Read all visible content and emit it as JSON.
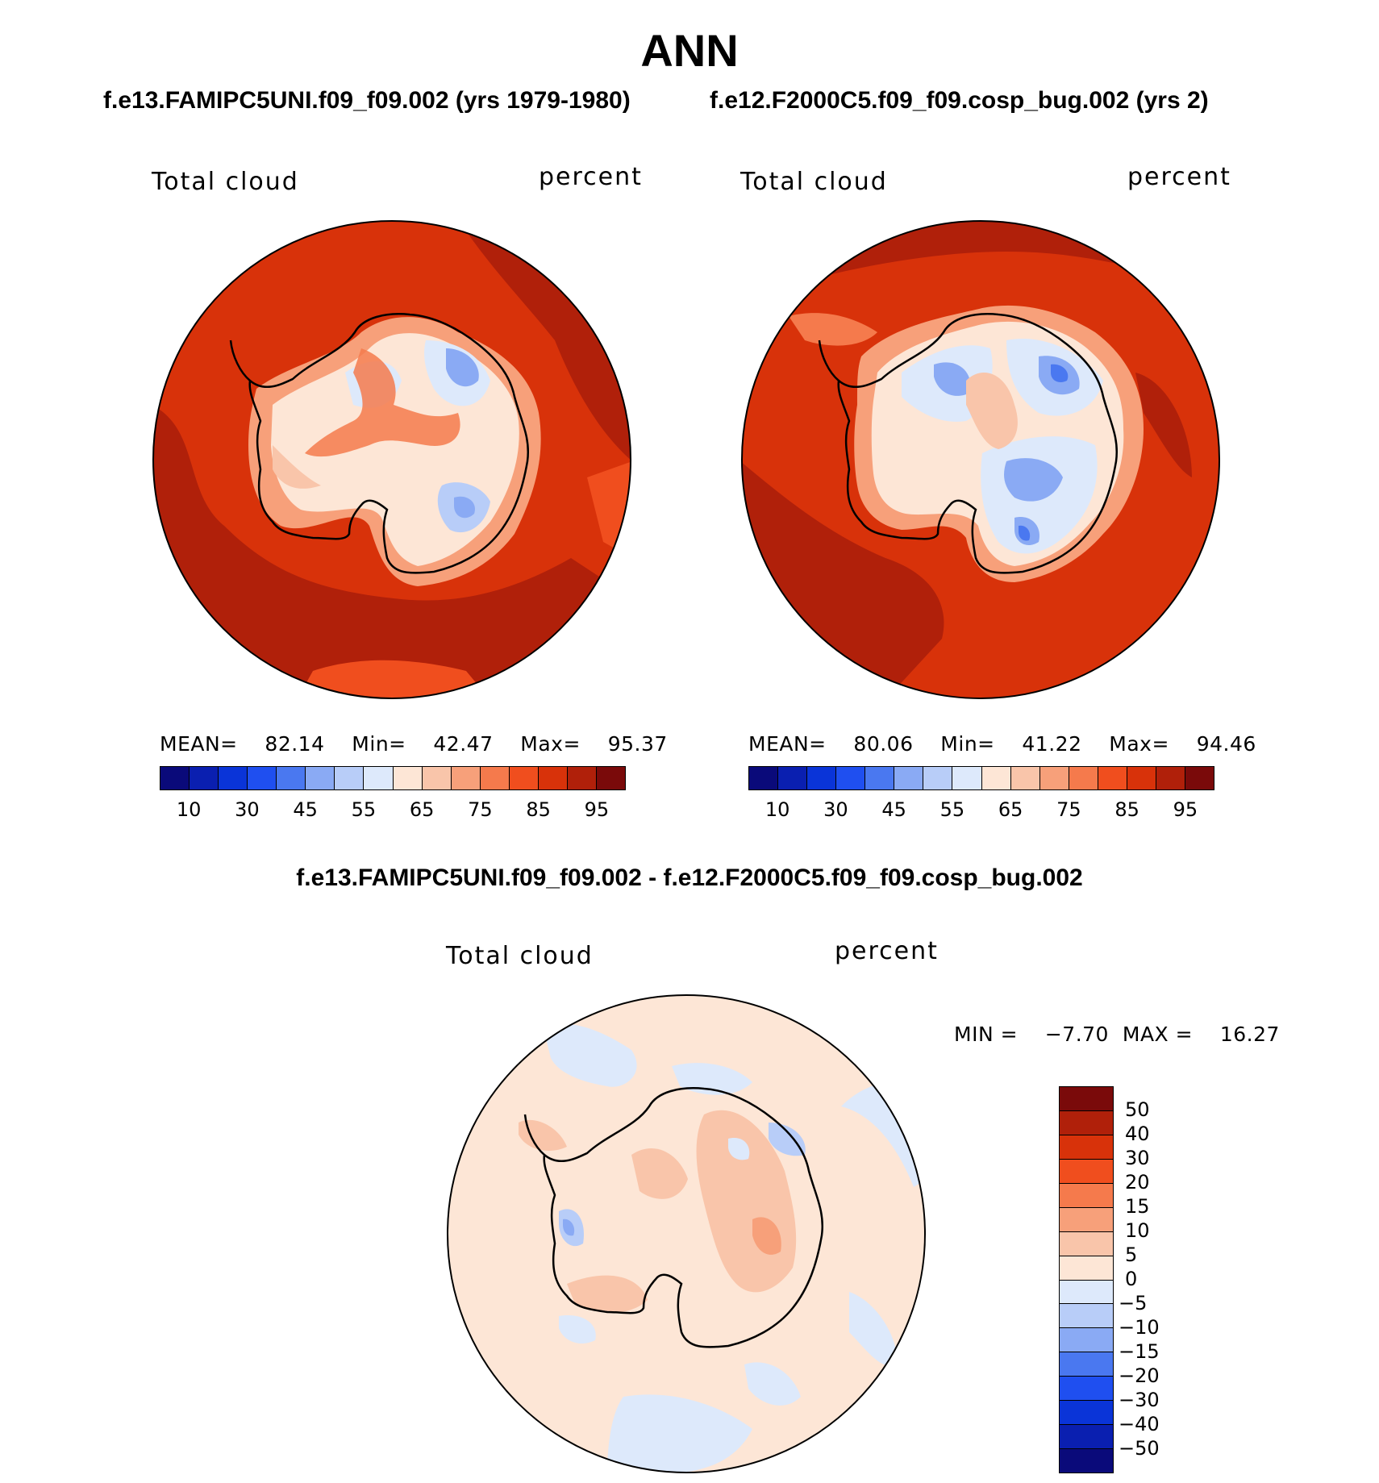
{
  "title": "ANN",
  "panel_left": {
    "header": "f.e13.FAMIPC5UNI.f09_f09.002 (yrs 1979-1980)",
    "variable": "Total cloud",
    "units": "percent",
    "mean_label": "MEAN=",
    "mean": "82.14",
    "min_label": "Min=",
    "min": "42.47",
    "max_label": "Max=",
    "max": "95.37"
  },
  "panel_right": {
    "header": "f.e12.F2000C5.f09_f09.cosp_bug.002 (yrs 2)",
    "variable": "Total cloud",
    "units": "percent",
    "mean_label": "MEAN=",
    "mean": "80.06",
    "min_label": "Min=",
    "min": "41.22",
    "max_label": "Max=",
    "max": "94.46"
  },
  "abs_colorbar": {
    "colors": [
      "#0a0a7a",
      "#0a1fb0",
      "#0a34d8",
      "#1f4ff0",
      "#4a78f0",
      "#8aaaf4",
      "#b8cdf8",
      "#dde9fb",
      "#fde6d6",
      "#f9c5aa",
      "#f7a07a",
      "#f57a4c",
      "#f04e1e",
      "#d8320a",
      "#b0200a",
      "#7a0a0a"
    ],
    "ticks": [
      "10",
      "30",
      "45",
      "55",
      "65",
      "75",
      "85",
      "95"
    ]
  },
  "diff_panel": {
    "header": "f.e13.FAMIPC5UNI.f09_f09.002 - f.e12.F2000C5.f09_f09.cosp_bug.002",
    "variable": "Total cloud",
    "units": "percent",
    "min_label": "MIN =",
    "min": "−7.70",
    "max_label": "MAX =",
    "max": "16.27"
  },
  "diff_colorbar": {
    "colors": [
      "#7a0a0a",
      "#b0200a",
      "#d8320a",
      "#f04e1e",
      "#f57a4c",
      "#f7a07a",
      "#f9c5aa",
      "#fde6d6",
      "#dde9fb",
      "#b8cdf8",
      "#8aaaf4",
      "#4a78f0",
      "#1f4ff0",
      "#0a34d8",
      "#0a1fb0",
      "#0a0a7a"
    ],
    "ticks": [
      "50",
      "40",
      "30",
      "20",
      "15",
      "10",
      "5",
      "0",
      "−5",
      "−10",
      "−15",
      "−20",
      "−30",
      "−40",
      "−50"
    ]
  }
}
